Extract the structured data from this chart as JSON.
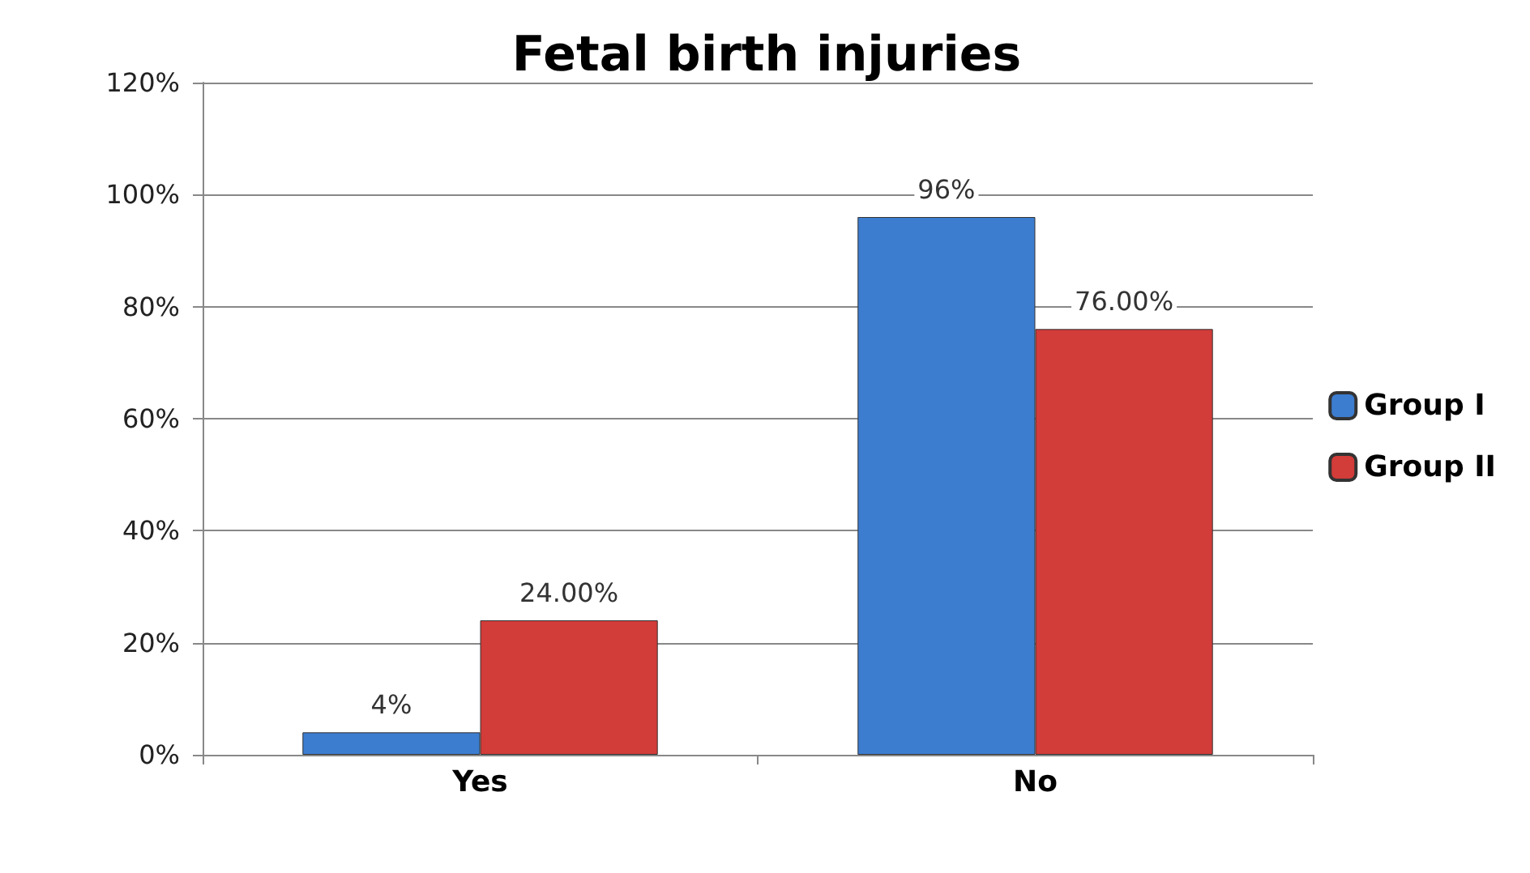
{
  "chart_data": {
    "type": "bar",
    "title": "Fetal birth injuries",
    "categories": [
      "Yes",
      "No"
    ],
    "series": [
      {
        "name": "Group I",
        "color": "#3c7dd0",
        "values": [
          4,
          96
        ],
        "value_labels": [
          "4%",
          "96%"
        ]
      },
      {
        "name": "Group II",
        "color": "#d23c39",
        "values": [
          24,
          76
        ],
        "value_labels": [
          "24.00%",
          "76.00%"
        ]
      }
    ],
    "ylim": [
      0,
      120
    ],
    "yticks": [
      {
        "value": 0,
        "label": "0%"
      },
      {
        "value": 20,
        "label": "20%"
      },
      {
        "value": 40,
        "label": "40%"
      },
      {
        "value": 60,
        "label": "60%"
      },
      {
        "value": 80,
        "label": "80%"
      },
      {
        "value": 100,
        "label": "100%"
      },
      {
        "value": 120,
        "label": "120%"
      }
    ],
    "grid": "y",
    "legend": "right"
  }
}
